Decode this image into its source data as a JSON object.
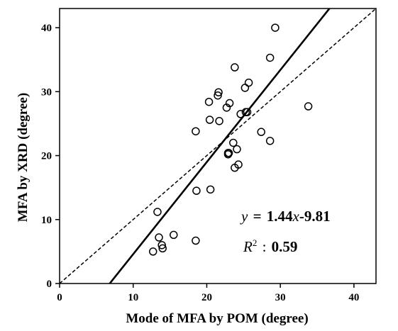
{
  "chart_data": {
    "type": "scatter",
    "title": "",
    "xlabel": "Mode of MFA by POM (degree)",
    "ylabel": "MFA by XRD (degree)",
    "xlim": [
      0,
      43
    ],
    "ylim": [
      0,
      43
    ],
    "x_ticks": [
      "0",
      "10",
      "20",
      "30",
      "40"
    ],
    "y_ticks": [
      "0",
      "10",
      "20",
      "30",
      "40"
    ],
    "grid": false,
    "legend": "none",
    "series": [
      {
        "marker": "open-circle",
        "x": [
          13.3,
          13.5,
          12.7,
          13.9,
          14.0,
          15.5,
          18.5,
          18.6,
          20.5,
          18.5,
          20.4,
          20.3,
          21.5,
          21.6,
          21.7,
          22.7,
          23.0,
          22.9,
          23.1,
          23.6,
          23.8,
          24.1,
          24.3,
          23.8,
          24.6,
          25.2,
          25.5,
          25.7,
          27.4,
          28.6,
          28.6,
          29.3,
          33.8,
          22.9,
          25.3
        ],
        "y": [
          11.2,
          7.2,
          5.0,
          6.0,
          5.5,
          7.6,
          6.7,
          14.5,
          14.7,
          23.8,
          25.6,
          28.4,
          29.4,
          29.9,
          25.4,
          27.5,
          20.4,
          20.4,
          28.2,
          22.0,
          18.1,
          21.0,
          18.6,
          33.8,
          26.5,
          30.6,
          26.8,
          31.4,
          23.7,
          22.3,
          35.3,
          40.0,
          27.7,
          20.2,
          26.8
        ]
      }
    ],
    "lines": [
      {
        "kind": "fit",
        "style": "solid",
        "slope": 1.44,
        "intercept": -9.81
      },
      {
        "kind": "1:1",
        "style": "dashed",
        "slope": 1,
        "intercept": 0
      }
    ],
    "annotations": {
      "eq_y": "y",
      "eq_eq": "=",
      "eq_coef": "1.44",
      "eq_x": "x",
      "eq_rest": "-9.81",
      "r2_r": "R",
      "r2_sup": "2",
      "r2_colon": ":",
      "r2_val": "0.59"
    },
    "colors": {
      "ink": "#000000"
    }
  }
}
